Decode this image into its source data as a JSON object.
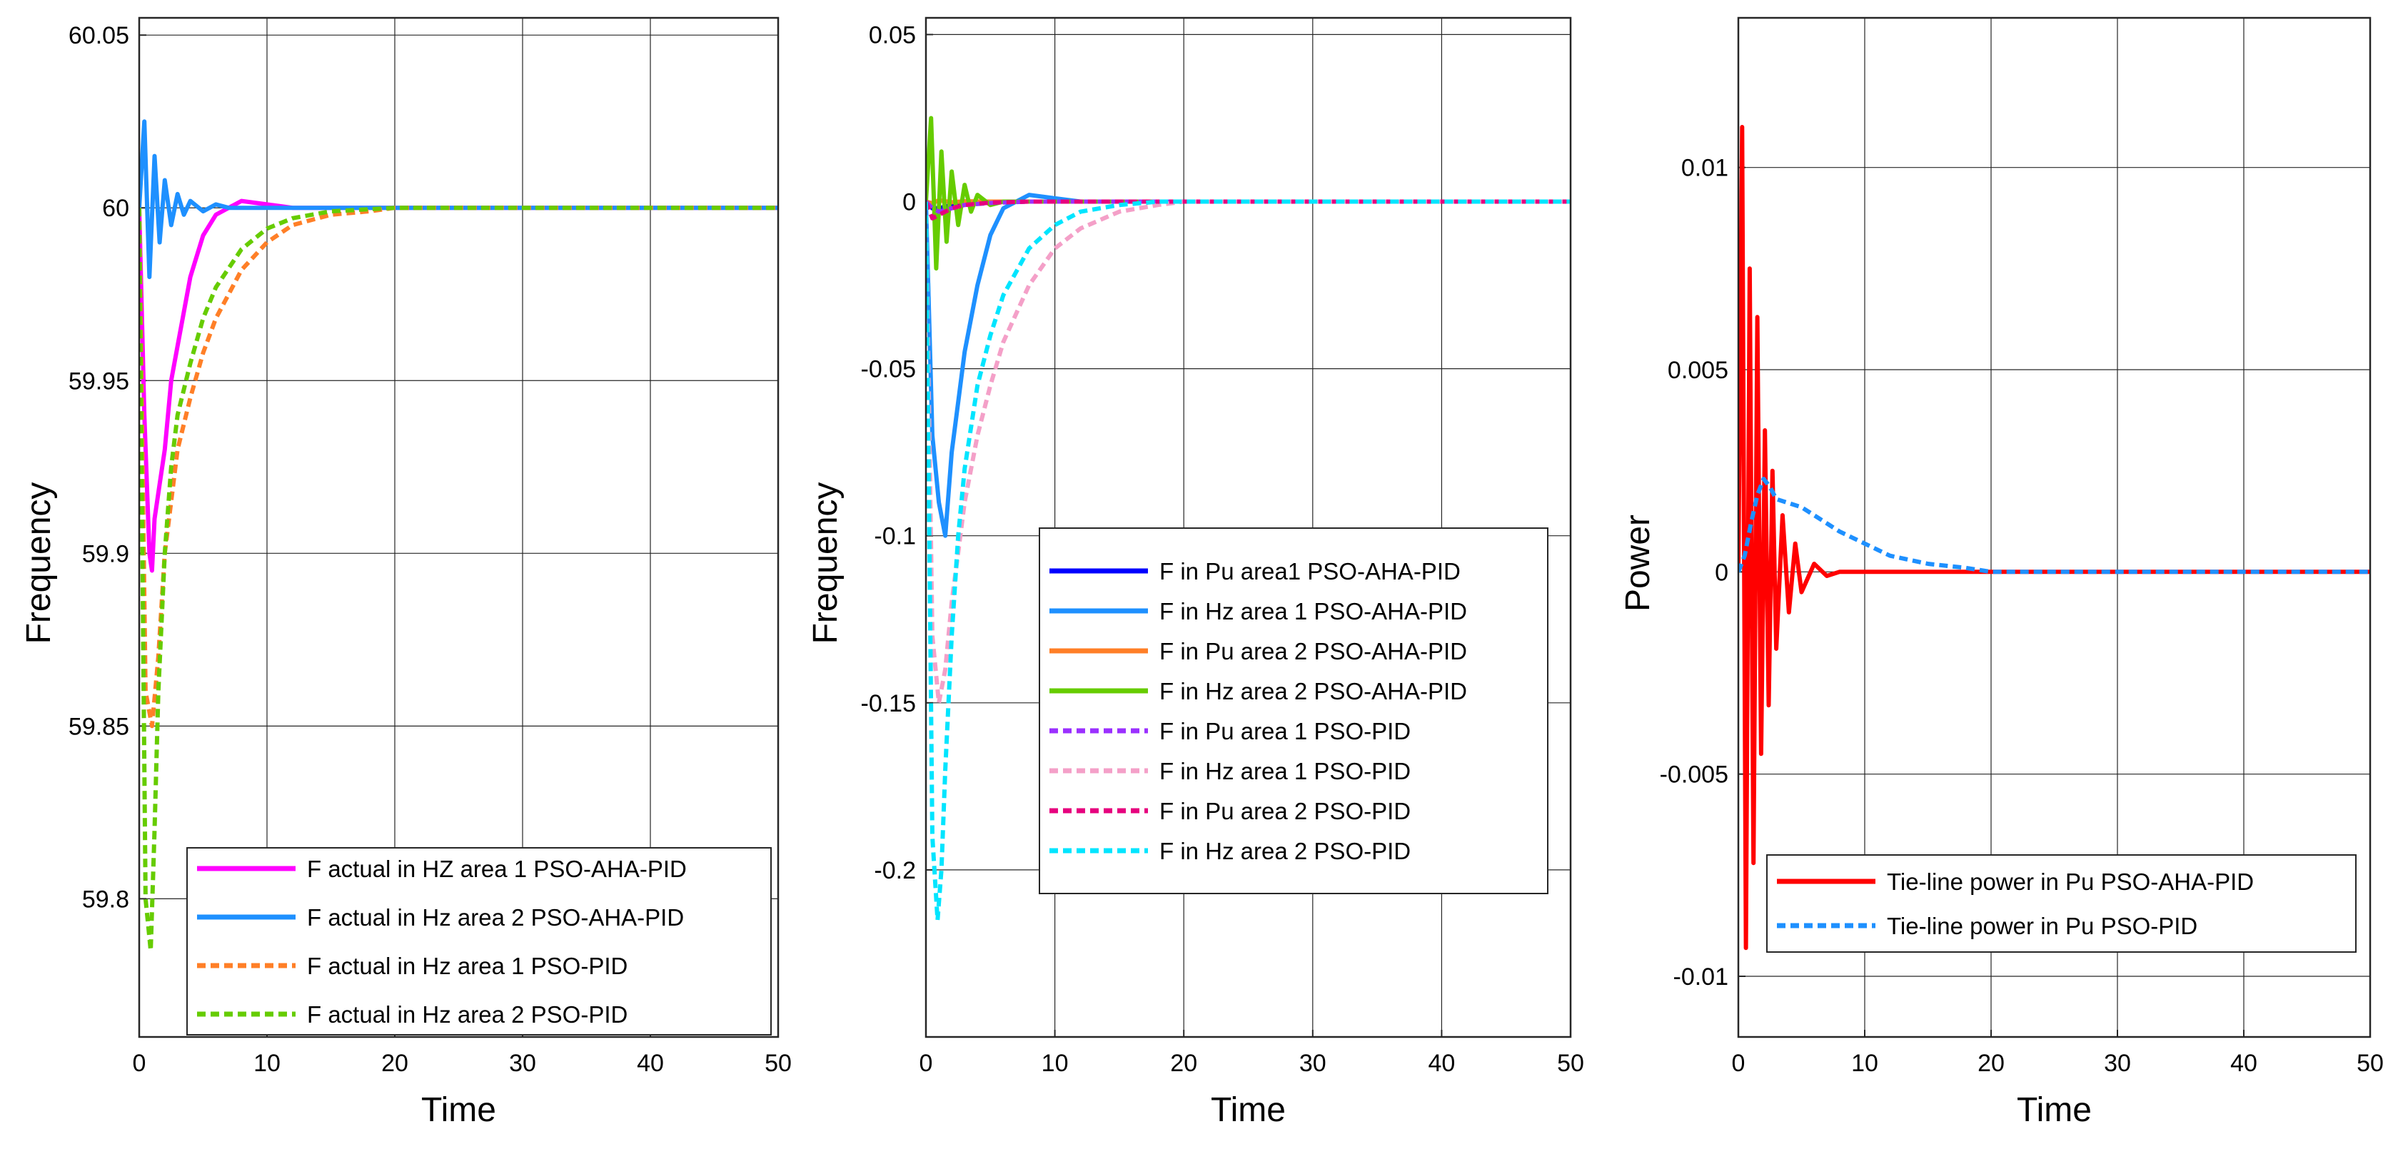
{
  "chart_data": [
    {
      "type": "line",
      "xlabel": "Time",
      "ylabel": "Frequency",
      "xlim": [
        0,
        50
      ],
      "ylim": [
        59.76,
        60.055
      ],
      "xticks": [
        "0",
        "10",
        "20",
        "30",
        "40",
        "50"
      ],
      "yticks": [
        "59.8",
        "59.85",
        "59.9",
        "59.95",
        "60",
        "60.05"
      ],
      "grid": true,
      "legend_location": "bottom-right",
      "series": [
        {
          "name": "F actual in HZ area 1 PSO-AHA-PID",
          "color": "#ff00ff",
          "style": "solid",
          "x": [
            0,
            0.4,
            0.8,
            1.0,
            1.2,
            1.6,
            2.0,
            2.5,
            3.0,
            4.0,
            5.0,
            6.0,
            8.0,
            10,
            12,
            15,
            20,
            50
          ],
          "y": [
            60,
            59.94,
            59.9,
            59.895,
            59.91,
            59.92,
            59.93,
            59.95,
            59.96,
            59.98,
            59.992,
            59.998,
            60.002,
            60.001,
            60.0,
            60.0,
            60.0,
            60.0
          ]
        },
        {
          "name": "F actual in Hz area 2 PSO-AHA-PID",
          "color": "#1e90ff",
          "style": "solid",
          "x": [
            0,
            0.4,
            0.8,
            1.2,
            1.6,
            2.0,
            2.5,
            3.0,
            3.5,
            4.0,
            5.0,
            6.0,
            7.0,
            8.0,
            10,
            15,
            50
          ],
          "y": [
            60,
            60.025,
            59.98,
            60.015,
            59.99,
            60.008,
            59.995,
            60.004,
            59.998,
            60.002,
            59.999,
            60.001,
            60.0,
            60.0,
            60.0,
            60.0,
            60.0
          ]
        },
        {
          "name": "F actual in Hz area 1 PSO-PID",
          "color": "#ff7f27",
          "style": "dashed",
          "x": [
            0,
            0.5,
            1.0,
            1.5,
            2.0,
            3.0,
            4.0,
            5.0,
            6.0,
            8.0,
            10,
            12,
            15,
            18,
            20,
            25,
            50
          ],
          "y": [
            60,
            59.86,
            59.85,
            59.87,
            59.9,
            59.93,
            59.945,
            59.958,
            59.968,
            59.982,
            59.99,
            59.995,
            59.998,
            59.999,
            60.0,
            60.0,
            60.0
          ]
        },
        {
          "name": "F actual in Hz area 2 PSO-PID",
          "color": "#66cc00",
          "style": "dashed",
          "x": [
            0,
            0.5,
            0.9,
            1.2,
            1.5,
            2.0,
            2.5,
            3.0,
            4.0,
            5.0,
            6.0,
            8.0,
            10,
            12,
            15,
            20,
            50
          ],
          "y": [
            60,
            59.8,
            59.785,
            59.82,
            59.86,
            59.9,
            59.925,
            59.94,
            59.955,
            59.968,
            59.977,
            59.988,
            59.994,
            59.997,
            59.999,
            60.0,
            60.0
          ]
        }
      ]
    },
    {
      "type": "line",
      "xlabel": "Time",
      "ylabel": "Frequency",
      "xlim": [
        0,
        50
      ],
      "ylim": [
        -0.25,
        0.055
      ],
      "xticks": [
        "0",
        "10",
        "20",
        "30",
        "40",
        "50"
      ],
      "yticks": [
        "-0.2",
        "-0.15",
        "-0.1",
        "-0.05",
        "0",
        "0.05"
      ],
      "grid": true,
      "legend_location": "bottom-right",
      "series": [
        {
          "name": "F in Pu area1 PSO-AHA-PID",
          "color": "#0000ff",
          "style": "solid",
          "x": [
            0,
            0.5,
            1.0,
            1.5,
            2.0,
            3.0,
            4.0,
            6.0,
            8.0,
            50
          ],
          "y": [
            0,
            -0.002,
            -0.002,
            -0.0015,
            -0.001,
            -0.0005,
            -0.0002,
            0.0,
            0.0,
            0.0
          ]
        },
        {
          "name": "F in Hz area 1 PSO-AHA-PID",
          "color": "#1e90ff",
          "style": "solid",
          "x": [
            0,
            0.5,
            1.0,
            1.5,
            2.0,
            2.5,
            3.0,
            4.0,
            5.0,
            6.0,
            8.0,
            10,
            12,
            15,
            50
          ],
          "y": [
            0,
            -0.07,
            -0.09,
            -0.1,
            -0.075,
            -0.06,
            -0.045,
            -0.025,
            -0.01,
            -0.002,
            0.002,
            0.001,
            0.0,
            0.0,
            0.0
          ]
        },
        {
          "name": "F in Pu area 2 PSO-AHA-PID",
          "color": "#ff7f27",
          "style": "solid",
          "x": [
            0,
            0.5,
            1.0,
            2.0,
            3.0,
            5.0,
            50
          ],
          "y": [
            0,
            -0.0005,
            0.0004,
            -0.0002,
            0.0001,
            0.0,
            0.0
          ]
        },
        {
          "name": "F in Hz area 2 PSO-AHA-PID",
          "color": "#66cc00",
          "style": "solid",
          "x": [
            0,
            0.4,
            0.8,
            1.2,
            1.6,
            2.0,
            2.5,
            3.0,
            3.5,
            4.0,
            5.0,
            6.0,
            8.0,
            50
          ],
          "y": [
            0,
            0.025,
            -0.02,
            0.015,
            -0.012,
            0.009,
            -0.007,
            0.005,
            -0.003,
            0.002,
            -0.001,
            0.0,
            0.0,
            0.0
          ]
        },
        {
          "name": "F in Pu  area 1 PSO-PID",
          "color": "#9b30ff",
          "style": "dashed",
          "x": [
            0,
            0.5,
            1.0,
            2.0,
            3.0,
            5.0,
            8.0,
            50
          ],
          "y": [
            0,
            -0.002,
            -0.003,
            -0.002,
            -0.001,
            -0.0004,
            0.0,
            0.0
          ]
        },
        {
          "name": "F in Hz  area 1 PSO-PID",
          "color": "#f4a0c8",
          "style": "dashed",
          "x": [
            0,
            0.5,
            1.0,
            1.5,
            2.0,
            3.0,
            4.0,
            5.0,
            6.0,
            8.0,
            10,
            12,
            15,
            18,
            20,
            25,
            50
          ],
          "y": [
            0,
            -0.13,
            -0.15,
            -0.14,
            -0.12,
            -0.09,
            -0.07,
            -0.055,
            -0.042,
            -0.025,
            -0.014,
            -0.008,
            -0.003,
            -0.001,
            0.0,
            0.0,
            0.0
          ]
        },
        {
          "name": "F in Pu area 2 PSO-PID",
          "color": "#e6007e",
          "style": "dashed",
          "x": [
            0,
            0.5,
            1.0,
            1.5,
            2.0,
            3.0,
            5.0,
            8.0,
            50
          ],
          "y": [
            0,
            -0.005,
            -0.004,
            -0.003,
            -0.002,
            -0.001,
            -0.0003,
            0.0,
            0.0
          ]
        },
        {
          "name": "F in Hz area 2 PSO-PID",
          "color": "#00e5ff",
          "style": "dashed",
          "x": [
            0,
            0.5,
            0.9,
            1.2,
            1.5,
            2.0,
            2.5,
            3.0,
            4.0,
            5.0,
            6.0,
            8.0,
            10,
            12,
            15,
            18,
            20,
            50
          ],
          "y": [
            0,
            -0.19,
            -0.215,
            -0.2,
            -0.17,
            -0.13,
            -0.1,
            -0.08,
            -0.055,
            -0.04,
            -0.028,
            -0.014,
            -0.007,
            -0.003,
            -0.001,
            0.0,
            0.0,
            0.0
          ]
        }
      ]
    },
    {
      "type": "line",
      "xlabel": "Time",
      "ylabel": "Power",
      "xlim": [
        0,
        50
      ],
      "ylim": [
        -0.0115,
        0.0137
      ],
      "xticks": [
        "0",
        "10",
        "20",
        "30",
        "40",
        "50"
      ],
      "yticks": [
        "-0.01",
        "-0.005",
        "0",
        "0.005",
        "0.01"
      ],
      "grid": true,
      "legend_location": "bottom-right",
      "series": [
        {
          "name": "Tie-line power  in Pu PSO-AHA-PID",
          "color": "#ff0000",
          "style": "solid",
          "x": [
            0,
            0.3,
            0.6,
            0.9,
            1.2,
            1.5,
            1.8,
            2.1,
            2.4,
            2.7,
            3.0,
            3.5,
            4.0,
            4.5,
            5.0,
            6.0,
            7.0,
            8.0,
            10,
            50
          ],
          "y": [
            0,
            0.011,
            -0.0093,
            0.0075,
            -0.0072,
            0.0063,
            -0.0045,
            0.0035,
            -0.0033,
            0.0025,
            -0.0019,
            0.0014,
            -0.001,
            0.0007,
            -0.0005,
            0.0002,
            -0.0001,
            0.0,
            0.0,
            0.0
          ]
        },
        {
          "name": "Tie-line power in Pu PSO-PID",
          "color": "#1e90ff",
          "style": "dashed",
          "x": [
            0,
            0.5,
            1.0,
            1.5,
            2.0,
            2.5,
            3.0,
            4.0,
            5.0,
            6.0,
            7.0,
            8.0,
            10,
            12,
            15,
            18,
            20,
            25,
            50
          ],
          "y": [
            0,
            0.0004,
            0.0012,
            0.0019,
            0.0023,
            0.0021,
            0.0018,
            0.0017,
            0.0016,
            0.0014,
            0.0012,
            0.001,
            0.0007,
            0.0004,
            0.0002,
            0.0001,
            0.0,
            0.0,
            0.0
          ]
        }
      ]
    }
  ]
}
